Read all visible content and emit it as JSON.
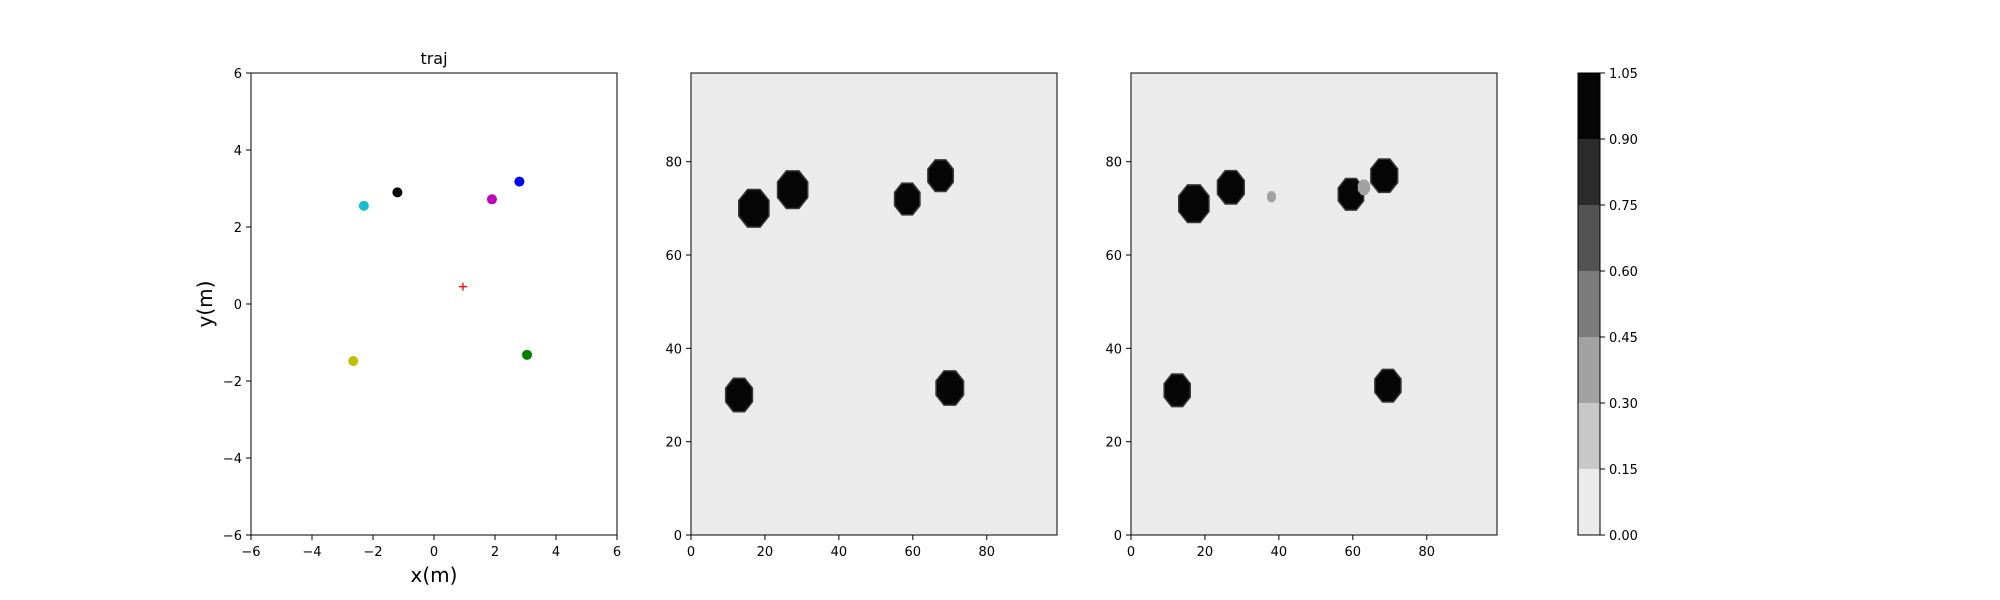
{
  "chart_data": [
    {
      "type": "scatter",
      "title": "traj",
      "xlabel": "x(m)",
      "ylabel": "y(m)",
      "xlim": [
        -6,
        6
      ],
      "ylim": [
        -6,
        6
      ],
      "xticks": [
        "−6",
        "−4",
        "−2",
        "0",
        "2",
        "4",
        "6"
      ],
      "yticks": [
        "−6",
        "−4",
        "−2",
        "0",
        "2",
        "4",
        "6"
      ],
      "grid": false,
      "points": [
        {
          "x": -2.3,
          "y": 2.55,
          "color": "#17becf",
          "marker": "circle"
        },
        {
          "x": -1.2,
          "y": 2.9,
          "color": "#000000",
          "marker": "circle"
        },
        {
          "x": 1.9,
          "y": 2.72,
          "color": "#bf00bf",
          "marker": "circle"
        },
        {
          "x": 2.8,
          "y": 3.18,
          "color": "#0000ff",
          "marker": "circle"
        },
        {
          "x": -2.65,
          "y": -1.48,
          "color": "#bfbf00",
          "marker": "circle"
        },
        {
          "x": 3.05,
          "y": -1.32,
          "color": "#008000",
          "marker": "circle"
        },
        {
          "x": 0.95,
          "y": 0.45,
          "color": "#ff0000",
          "marker": "plus"
        }
      ]
    },
    {
      "type": "heatmap",
      "title": "",
      "xlim": [
        0,
        99
      ],
      "ylim": [
        0,
        99
      ],
      "xticks": [
        "0",
        "20",
        "40",
        "60",
        "80"
      ],
      "yticks": [
        "0",
        "20",
        "40",
        "60",
        "80"
      ],
      "background_value": 0.05,
      "blobs": [
        {
          "x": 17,
          "y": 70,
          "r": 4.2,
          "value": 1.0
        },
        {
          "x": 27.5,
          "y": 74,
          "r": 4.2,
          "value": 1.0
        },
        {
          "x": 58.5,
          "y": 72,
          "r": 3.5,
          "value": 1.0
        },
        {
          "x": 67.5,
          "y": 77,
          "r": 3.5,
          "value": 1.0
        },
        {
          "x": 13,
          "y": 30,
          "r": 3.7,
          "value": 1.0
        },
        {
          "x": 70,
          "y": 31.5,
          "r": 3.8,
          "value": 1.0
        }
      ]
    },
    {
      "type": "heatmap",
      "title": "",
      "xlim": [
        0,
        99
      ],
      "ylim": [
        0,
        99
      ],
      "xticks": [
        "0",
        "20",
        "40",
        "60",
        "80"
      ],
      "yticks": [
        "0",
        "20",
        "40",
        "60",
        "80"
      ],
      "background_value": 0.05,
      "blobs": [
        {
          "x": 17,
          "y": 71,
          "r": 4.2,
          "value": 1.0
        },
        {
          "x": 27,
          "y": 74.5,
          "r": 3.7,
          "value": 1.0
        },
        {
          "x": 38,
          "y": 72.5,
          "r": 1.3,
          "value": 0.32
        },
        {
          "x": 59.5,
          "y": 73,
          "r": 3.5,
          "value": 1.0
        },
        {
          "x": 63,
          "y": 74.5,
          "r": 1.8,
          "value": 0.35
        },
        {
          "x": 68.5,
          "y": 77,
          "r": 3.7,
          "value": 1.0
        },
        {
          "x": 12.5,
          "y": 31,
          "r": 3.6,
          "value": 1.0
        },
        {
          "x": 69.5,
          "y": 32,
          "r": 3.6,
          "value": 1.0
        }
      ]
    }
  ],
  "colorbar": {
    "levels": [
      0.0,
      0.15,
      0.3,
      0.45,
      0.6,
      0.75,
      0.9,
      1.05
    ],
    "tick_labels": [
      "0.00",
      "0.15",
      "0.30",
      "0.45",
      "0.60",
      "0.75",
      "0.90",
      "1.05"
    ],
    "colors": [
      "#ebebeb",
      "#c8c8c8",
      "#a2a2a2",
      "#7b7b7b",
      "#535353",
      "#2c2c2c",
      "#060606"
    ]
  }
}
